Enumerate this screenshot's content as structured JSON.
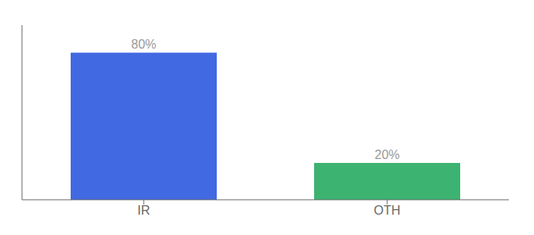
{
  "chart_data": {
    "type": "bar",
    "categories": [
      "IR",
      "OTH"
    ],
    "values": [
      80,
      20
    ],
    "value_labels": [
      "80%",
      "20%"
    ],
    "colors": [
      "#4169E1",
      "#3CB371"
    ],
    "ylim": [
      0,
      95
    ],
    "tick_labels": "x",
    "data_labels": true
  }
}
